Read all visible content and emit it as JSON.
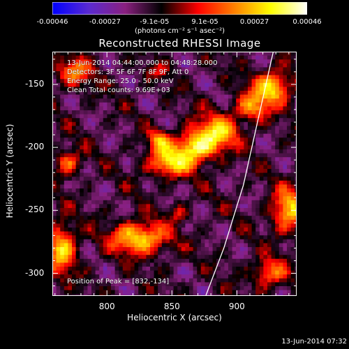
{
  "chart_data": {
    "type": "heatmap",
    "title": "Reconstructed RHESSI Image",
    "xlabel": "Heliocentric X (arcsec)",
    "ylabel": "Heliocentric Y (arcsec)",
    "xlim": [
      758,
      946
    ],
    "ylim": [
      -318,
      -124
    ],
    "x_ticks": [
      "800",
      "850",
      "900"
    ],
    "x_tick_values": [
      800,
      850,
      900
    ],
    "y_ticks": [
      "-150",
      "-200",
      "-250",
      "-300"
    ],
    "y_tick_values": [
      -150,
      -200,
      -250,
      -300
    ],
    "colorbar": {
      "ticks": [
        "-0.00046",
        "-0.00027",
        "-9.1e-05",
        "9.1e-05",
        "0.00027",
        "0.00046"
      ],
      "tick_values": [
        -0.00046,
        -0.00027,
        -9.1e-05,
        9.1e-05,
        0.00027,
        0.00046
      ],
      "range": [
        -0.00046,
        0.00046
      ],
      "unit": "(photons cm⁻² s⁻¹ asec⁻²)",
      "colormap": [
        "#0000ff",
        "#5a2ad0",
        "#8a2080",
        "#000000",
        "#ff0000",
        "#ff8000",
        "#ffff00",
        "#ffffff"
      ]
    },
    "info": [
      "13-Jun-2014 04:44:00.000 to 04:48:28.000",
      "Detectors: 3F 5F 6F 7F 8F 9F, Att 0",
      "Energy Range: 25.0 - 50.0 keV",
      "Clean     Total counts: 9.69E+03"
    ],
    "peak_label": "Position of Peak = [832,-134]",
    "peak": [
      832,
      -134
    ],
    "limb": [
      [
        928,
        -124
      ],
      [
        918,
        -170
      ],
      [
        905,
        -230
      ],
      [
        890,
        -280
      ],
      [
        876,
        -318
      ]
    ],
    "sources": [
      {
        "x": 928,
        "y": -152,
        "sx": 10,
        "sy": 9,
        "amp": 0.00044
      },
      {
        "x": 912,
        "y": -168,
        "sx": 9,
        "sy": 8,
        "amp": 0.00032
      },
      {
        "x": 885,
        "y": -188,
        "sx": 12,
        "sy": 10,
        "amp": 0.00038
      },
      {
        "x": 868,
        "y": -200,
        "sx": 11,
        "sy": 9,
        "amp": 0.00042
      },
      {
        "x": 848,
        "y": -212,
        "sx": 12,
        "sy": 8,
        "amp": 0.0004
      },
      {
        "x": 840,
        "y": -195,
        "sx": 6,
        "sy": 6,
        "amp": 0.0003
      },
      {
        "x": 825,
        "y": -272,
        "sx": 15,
        "sy": 9,
        "amp": 0.00045
      },
      {
        "x": 765,
        "y": -280,
        "sx": 8,
        "sy": 14,
        "amp": 0.0004
      },
      {
        "x": 770,
        "y": -212,
        "sx": 7,
        "sy": 7,
        "amp": 0.00028
      },
      {
        "x": 775,
        "y": -140,
        "sx": 10,
        "sy": 8,
        "amp": 0.0003
      },
      {
        "x": 940,
        "y": -250,
        "sx": 9,
        "sy": 12,
        "amp": 0.0004
      },
      {
        "x": 925,
        "y": -300,
        "sx": 9,
        "sy": 8,
        "amp": 0.0003
      },
      {
        "x": 855,
        "y": -252,
        "sx": 5,
        "sy": 5,
        "amp": 0.00018
      },
      {
        "x": 840,
        "y": -140,
        "sx": 6,
        "sy": 5,
        "amp": 0.00014
      }
    ]
  },
  "timestamp": "13-Jun-2014 07:32"
}
